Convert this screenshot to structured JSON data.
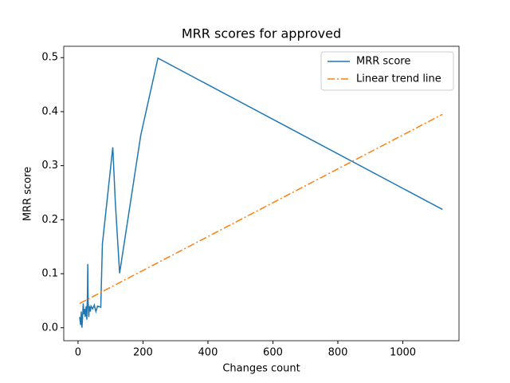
{
  "chart_data": {
    "type": "line",
    "title": "MRR scores for approved",
    "xlabel": "Changes count",
    "ylabel": "MRR score",
    "xlim": [
      -44,
      1173
    ],
    "ylim": [
      -0.024,
      0.521
    ],
    "xticks": [
      0,
      200,
      400,
      600,
      800,
      1000
    ],
    "yticks": [
      {
        "value": 0,
        "label": "0.0"
      },
      0.1,
      0.2,
      0.3,
      0.4,
      0.5
    ],
    "legend": "upper right",
    "series": [
      {
        "name": "MRR score",
        "color": "#1f77b4",
        "style": "solid",
        "x": [
          5,
          8,
          10,
          12,
          14,
          16,
          18,
          20,
          22,
          25,
          27,
          29,
          30,
          31,
          33,
          35,
          38,
          40,
          45,
          50,
          55,
          60,
          70,
          75,
          107,
          115,
          128,
          193,
          246,
          1122
        ],
        "values": [
          0.02,
          0.005,
          0.03,
          0.0,
          0.02,
          0.045,
          0.025,
          0.035,
          0.02,
          0.04,
          0.015,
          0.065,
          0.118,
          0.05,
          0.02,
          0.04,
          0.03,
          0.04,
          0.035,
          0.042,
          0.03,
          0.04,
          0.038,
          0.155,
          0.334,
          0.23,
          0.101,
          0.356,
          0.499,
          0.219
        ]
      },
      {
        "name": "Linear trend line",
        "color": "#ff7f0e",
        "style": "dashdot",
        "x": [
          5,
          1122
        ],
        "values": [
          0.045,
          0.395
        ]
      }
    ]
  }
}
